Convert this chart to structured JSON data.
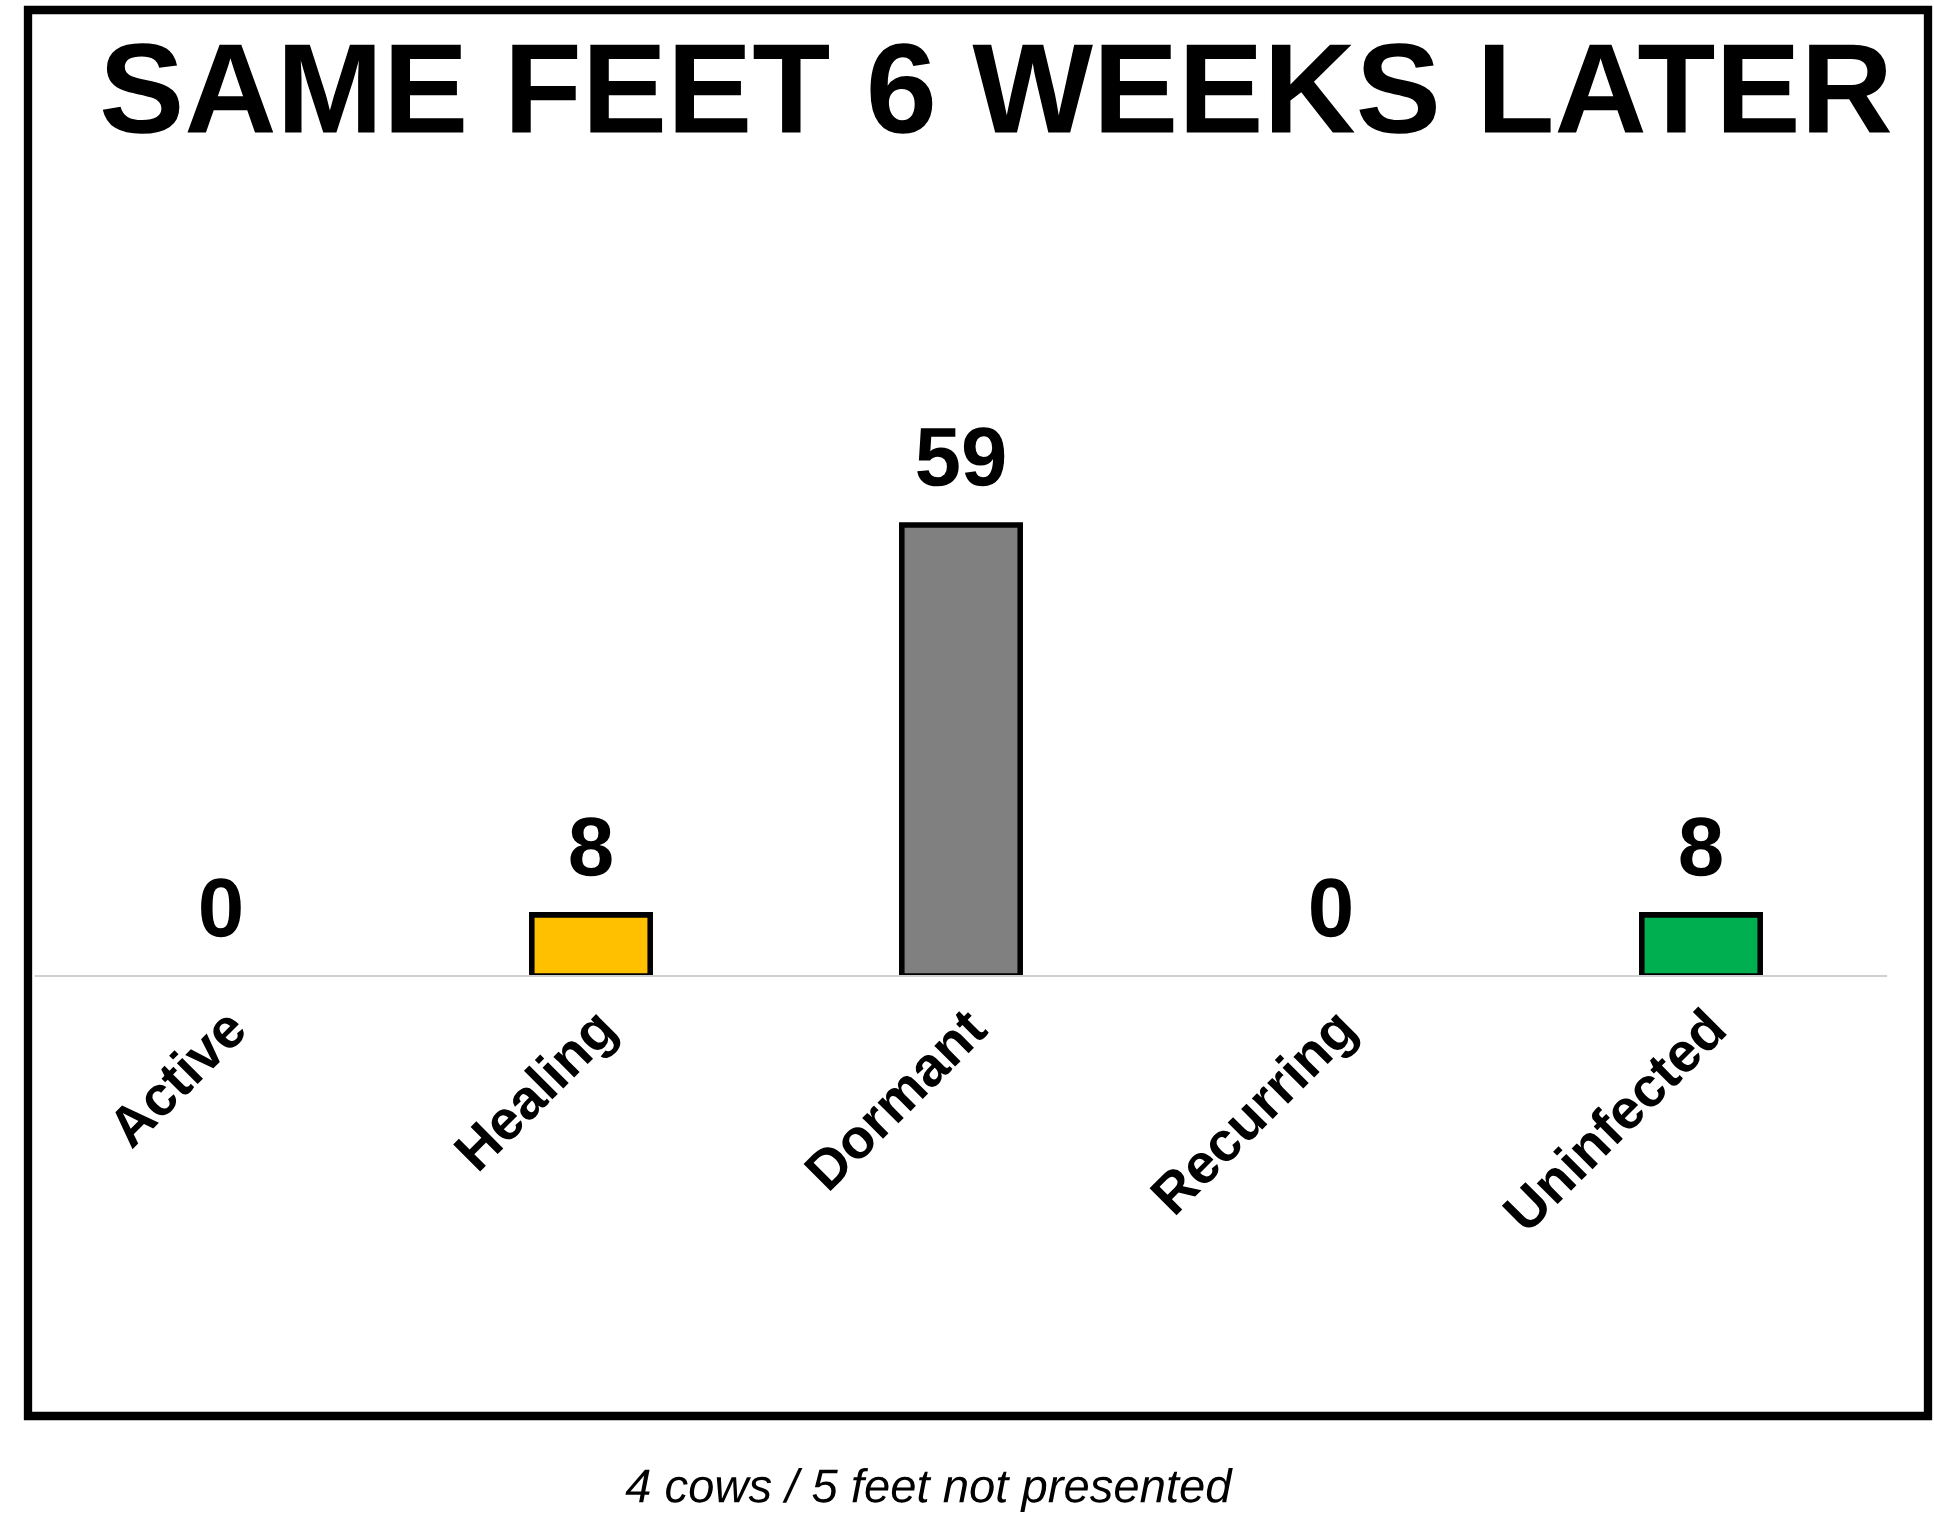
{
  "chart_data": {
    "type": "bar",
    "title": "SAME FEET 6 WEEKS LATER",
    "categories": [
      "Active",
      "Healing",
      "Dormant",
      "Recurring",
      "Uninfected"
    ],
    "values": [
      0,
      8,
      59,
      0,
      8
    ],
    "colors": [
      "#ffc000",
      "#ffc000",
      "#808080",
      "#ffc000",
      "#00b050"
    ],
    "data_labels": true,
    "grid": false,
    "legend": false,
    "annotations": [
      "4 cows / 5 feet not presented"
    ]
  }
}
